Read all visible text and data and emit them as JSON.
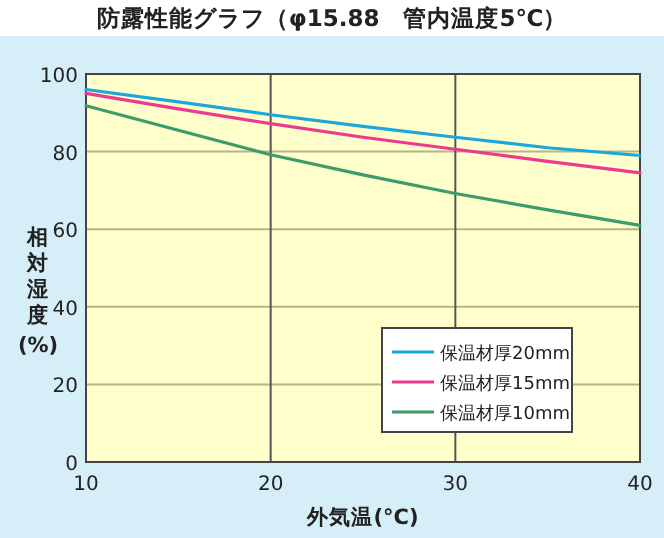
{
  "chart_data": {
    "type": "line",
    "title": "防露性能グラフ（φ15.88　管内温度5℃）",
    "xlabel": "外気温(°C)",
    "ylabel": "相対湿度(%)",
    "x": [
      10,
      15,
      20,
      25,
      30,
      35,
      40
    ],
    "series": [
      {
        "name": "保温材厚20mm",
        "color": "#1ba6dc",
        "values": [
          96,
          92.8,
          89.5,
          86.5,
          83.7,
          81,
          79
        ]
      },
      {
        "name": "保温材厚15mm",
        "color": "#ec3a8c",
        "values": [
          95,
          91,
          87.2,
          83.7,
          80.6,
          77.5,
          74.5
        ]
      },
      {
        "name": "保温材厚10mm",
        "color": "#3b9c6c",
        "values": [
          91.8,
          85.5,
          79.2,
          74,
          69.2,
          65,
          61
        ]
      }
    ],
    "xlim": [
      10,
      40
    ],
    "ylim": [
      0,
      100
    ],
    "xticks": [
      10,
      20,
      30,
      40
    ],
    "yticks": [
      0,
      20,
      40,
      60,
      80,
      100
    ],
    "grid": true,
    "legend": "bottom right",
    "marker": "none",
    "line_style": "solid"
  }
}
